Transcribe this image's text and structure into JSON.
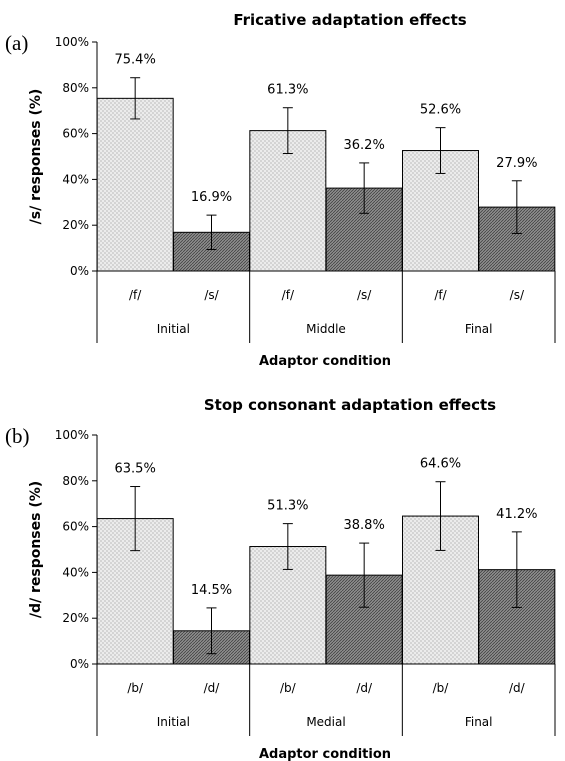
{
  "chart_data": [
    {
      "type": "bar",
      "panel_label": "(a)",
      "title": "Fricative adaptation effects",
      "xlabel": "Adaptor condition",
      "ylabel": "/s/ responses  (%)",
      "ylim": [
        0,
        100
      ],
      "y_ticks": [
        "0%",
        "20%",
        "40%",
        "60%",
        "80%",
        "100%"
      ],
      "groups": [
        "Initial",
        "Middle",
        "Final"
      ],
      "categories": [
        "/f/",
        "/s/",
        "/f/",
        "/s/",
        "/f/",
        "/s/"
      ],
      "values": [
        75.4,
        16.9,
        61.3,
        36.2,
        52.6,
        27.9
      ],
      "value_labels": [
        "75.4%",
        "16.9%",
        "61.3%",
        "36.2%",
        "52.6%",
        "27.9%"
      ],
      "error": [
        9,
        7.5,
        10,
        11,
        10,
        11.5
      ],
      "grid": false,
      "legend": "none",
      "colors": {
        "dotted_bar": "#ececec",
        "dark_bar": "#707070",
        "dots": "#7a7a7a"
      }
    },
    {
      "type": "bar",
      "panel_label": "(b)",
      "title": "Stop consonant adaptation effects",
      "xlabel": "Adaptor condition",
      "ylabel": "/d/ responses  (%)",
      "ylim": [
        0,
        100
      ],
      "y_ticks": [
        "0%",
        "20%",
        "40%",
        "60%",
        "80%",
        "100%"
      ],
      "groups": [
        "Initial",
        "Medial",
        "Final"
      ],
      "categories": [
        "/b/",
        "/d/",
        "/b/",
        "/d/",
        "/b/",
        "/d/"
      ],
      "values": [
        63.5,
        14.5,
        51.3,
        38.8,
        64.6,
        41.2
      ],
      "value_labels": [
        "63.5%",
        "14.5%",
        "51.3%",
        "38.8%",
        "64.6%",
        "41.2%"
      ],
      "error": [
        14,
        10,
        10,
        14,
        15,
        16.5
      ],
      "grid": false,
      "legend": "none",
      "colors": {
        "dotted_bar": "#ececec",
        "dark_bar": "#707070",
        "dots": "#7a7a7a"
      }
    }
  ]
}
